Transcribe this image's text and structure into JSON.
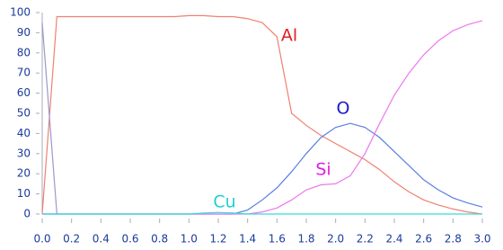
{
  "chart_data": {
    "type": "line",
    "x": [
      0,
      0.1,
      0.2,
      0.3,
      0.4,
      0.5,
      0.6,
      0.7,
      0.8,
      0.9,
      1.0,
      1.1,
      1.2,
      1.3,
      1.4,
      1.5,
      1.6,
      1.7,
      1.8,
      1.9,
      2.0,
      2.1,
      2.2,
      2.3,
      2.4,
      2.5,
      2.6,
      2.7,
      2.8,
      2.9,
      3.0
    ],
    "series": [
      {
        "name": "Al",
        "color": "#f08070",
        "label_color": "#e02020",
        "values": [
          0,
          98,
          98,
          98,
          98,
          98,
          98,
          98,
          98,
          98,
          98.5,
          98.5,
          98,
          98,
          97,
          95,
          88,
          50,
          44,
          39,
          35,
          31,
          27,
          22,
          16,
          11,
          7,
          4.5,
          2.5,
          1,
          0
        ]
      },
      {
        "name": "O",
        "color": "#5a7fe0",
        "label_color": "#1a1acc",
        "values": [
          0,
          0,
          0,
          0,
          0,
          0,
          0,
          0,
          0,
          0,
          0,
          0,
          0,
          0,
          2,
          7,
          13,
          21,
          30,
          38,
          43,
          45,
          43,
          38,
          31,
          24,
          17,
          12,
          8,
          5.5,
          3.5
        ]
      },
      {
        "name": "Si",
        "color": "#ee77ee",
        "label_color": "#e020e0",
        "values": [
          0,
          0,
          0,
          0,
          0,
          0,
          0,
          0,
          0,
          0,
          0,
          0,
          0,
          0,
          0,
          1,
          3,
          7,
          12,
          14.5,
          15,
          19,
          30,
          45,
          59,
          70,
          79,
          86,
          91,
          94,
          96
        ]
      },
      {
        "name": "Cu",
        "color": "#33dddd",
        "label_color": "#20d0d0",
        "values": [
          0,
          0,
          0,
          0,
          0,
          0,
          0,
          0,
          0,
          0,
          0,
          0.5,
          0.8,
          0.5,
          0,
          0,
          0,
          0,
          0,
          0,
          0,
          0,
          0,
          0,
          0,
          0,
          0,
          0,
          0,
          0,
          0
        ]
      },
      {
        "color": "#9999cc",
        "values": [
          95,
          0,
          null,
          null,
          null,
          null,
          null,
          null,
          null,
          null,
          null,
          null,
          null,
          null,
          null,
          null,
          null,
          null,
          null,
          null,
          null,
          null,
          null,
          null,
          null,
          null,
          null,
          null,
          null,
          null,
          null
        ]
      }
    ],
    "xlim": [
      0,
      3.0
    ],
    "ylim": [
      0,
      100
    ],
    "xticks": [
      {
        "value": 0,
        "label": "0.0"
      },
      0.2,
      0.4,
      0.6,
      0.8,
      {
        "value": 1,
        "label": "1.0"
      },
      1.2,
      1.4,
      1.6,
      1.8,
      {
        "value": 2,
        "label": "2.0"
      },
      2.2,
      2.4,
      2.6,
      2.8,
      {
        "value": 3,
        "label": "3.0"
      }
    ],
    "yticks": [
      0,
      10,
      20,
      30,
      40,
      50,
      60,
      70,
      80,
      90,
      100
    ],
    "grid": false
  }
}
